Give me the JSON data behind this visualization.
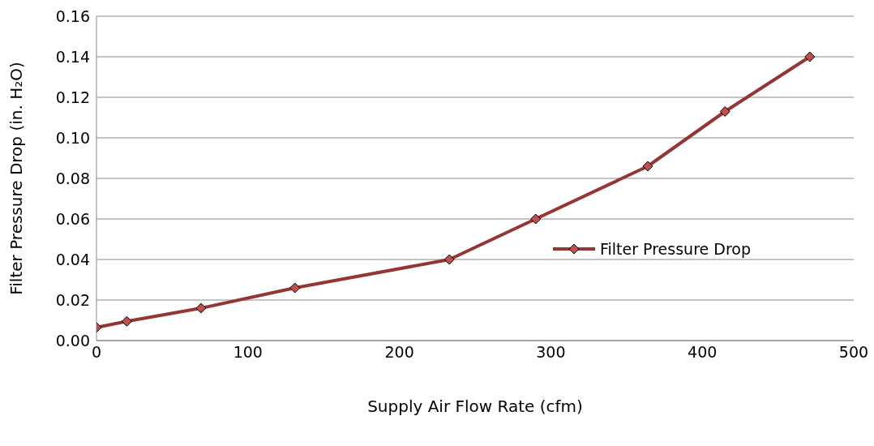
{
  "chart_data": {
    "type": "line",
    "xlabel": "Supply Air Flow Rate (cfm)",
    "ylabel": "Filter Pressure Drop (in. H₂O)",
    "x": [
      0,
      20,
      69,
      131,
      233,
      290,
      364,
      415,
      471
    ],
    "series": [
      {
        "name": "Filter Pressure Drop",
        "color": "#943634",
        "values": [
          0.0065,
          0.0095,
          0.016,
          0.026,
          0.04,
          0.06,
          0.086,
          0.113,
          0.14
        ]
      }
    ],
    "xlim": [
      0,
      500
    ],
    "xticks": [
      0,
      100,
      200,
      300,
      400,
      500
    ],
    "ylim": [
      0,
      0.16
    ],
    "yticks": [
      {
        "value": 0,
        "label": "0.00"
      },
      {
        "value": 0.02,
        "label": "0.02"
      },
      {
        "value": 0.04,
        "label": "0.04"
      },
      {
        "value": 0.06,
        "label": "0.06"
      },
      {
        "value": 0.08,
        "label": "0.08"
      },
      {
        "value": 0.1,
        "label": "0.10"
      },
      {
        "value": 0.12,
        "label": "0.12"
      },
      {
        "value": 0.14,
        "label": "0.14"
      },
      {
        "value": 0.16,
        "label": "0.16"
      }
    ],
    "grid": "y",
    "legend": "right",
    "marker": "diamond",
    "line_style": "solid"
  }
}
